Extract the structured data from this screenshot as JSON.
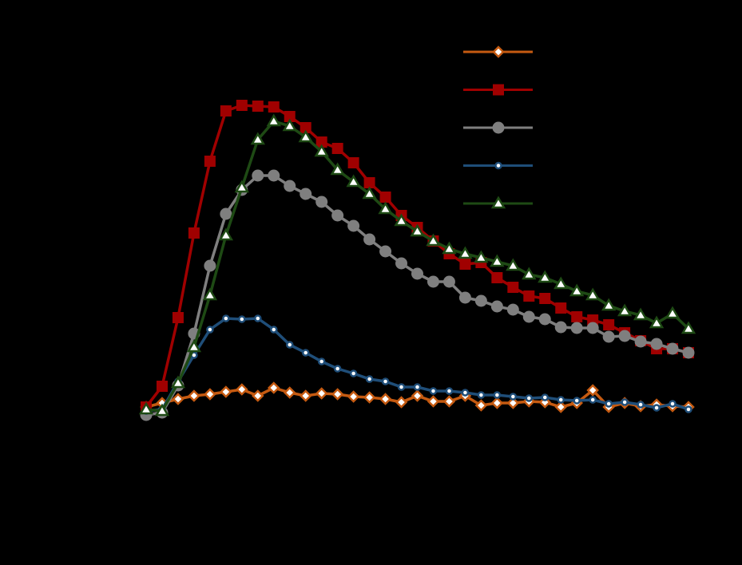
{
  "chart_data": {
    "type": "line",
    "x": [
      0,
      1,
      2,
      3,
      4,
      5,
      6,
      7,
      8,
      9,
      10,
      11,
      12,
      13,
      14,
      15,
      16,
      17,
      18,
      19,
      20,
      21,
      22,
      23,
      24,
      25,
      26,
      27,
      28,
      29,
      30,
      31,
      32,
      33,
      34
    ],
    "xlim": [
      0,
      34
    ],
    "ylim": [
      0,
      520
    ],
    "legend": "top-right",
    "background": "#000000",
    "series": [
      {
        "color": "#c55a11",
        "marker": "diamond",
        "values": [
          10,
          15,
          20,
          24,
          26,
          29,
          32,
          24,
          34,
          28,
          24,
          27,
          26,
          23,
          22,
          20,
          16,
          24,
          17,
          17,
          24,
          12,
          15,
          15,
          17,
          16,
          10,
          15,
          31,
          10,
          15,
          11,
          13,
          11,
          10
        ]
      },
      {
        "color": "#a00000",
        "marker": "square",
        "values": [
          10,
          36,
          122,
          228,
          318,
          381,
          388,
          387,
          386,
          374,
          360,
          342,
          334,
          316,
          291,
          273,
          250,
          235,
          218,
          202,
          189,
          191,
          172,
          160,
          149,
          146,
          134,
          123,
          119,
          113,
          103,
          93,
          83,
          83,
          78
        ]
      },
      {
        "color": "#7f7f7f",
        "marker": "circle",
        "values": [
          0,
          3,
          37,
          102,
          187,
          252,
          282,
          300,
          300,
          287,
          277,
          267,
          250,
          237,
          220,
          205,
          190,
          177,
          167,
          167,
          147,
          143,
          136,
          132,
          123,
          120,
          110,
          109,
          109,
          98,
          99,
          92,
          89,
          83,
          78
        ]
      },
      {
        "color": "#1f4e79",
        "marker": "small-circle",
        "values": [
          5,
          7,
          42,
          75,
          107,
          121,
          120,
          121,
          107,
          88,
          78,
          67,
          58,
          52,
          45,
          42,
          35,
          35,
          30,
          30,
          28,
          25,
          25,
          23,
          21,
          22,
          19,
          18,
          19,
          14,
          16,
          13,
          9,
          14,
          7
        ]
      },
      {
        "color": "#1e4a14",
        "marker": "triangle",
        "values": [
          7,
          5,
          40,
          85,
          150,
          225,
          285,
          345,
          368,
          362,
          348,
          330,
          307,
          292,
          277,
          258,
          243,
          230,
          218,
          208,
          202,
          197,
          192,
          187,
          176,
          172,
          164,
          155,
          150,
          137,
          130,
          125,
          115,
          127,
          108
        ]
      }
    ]
  }
}
